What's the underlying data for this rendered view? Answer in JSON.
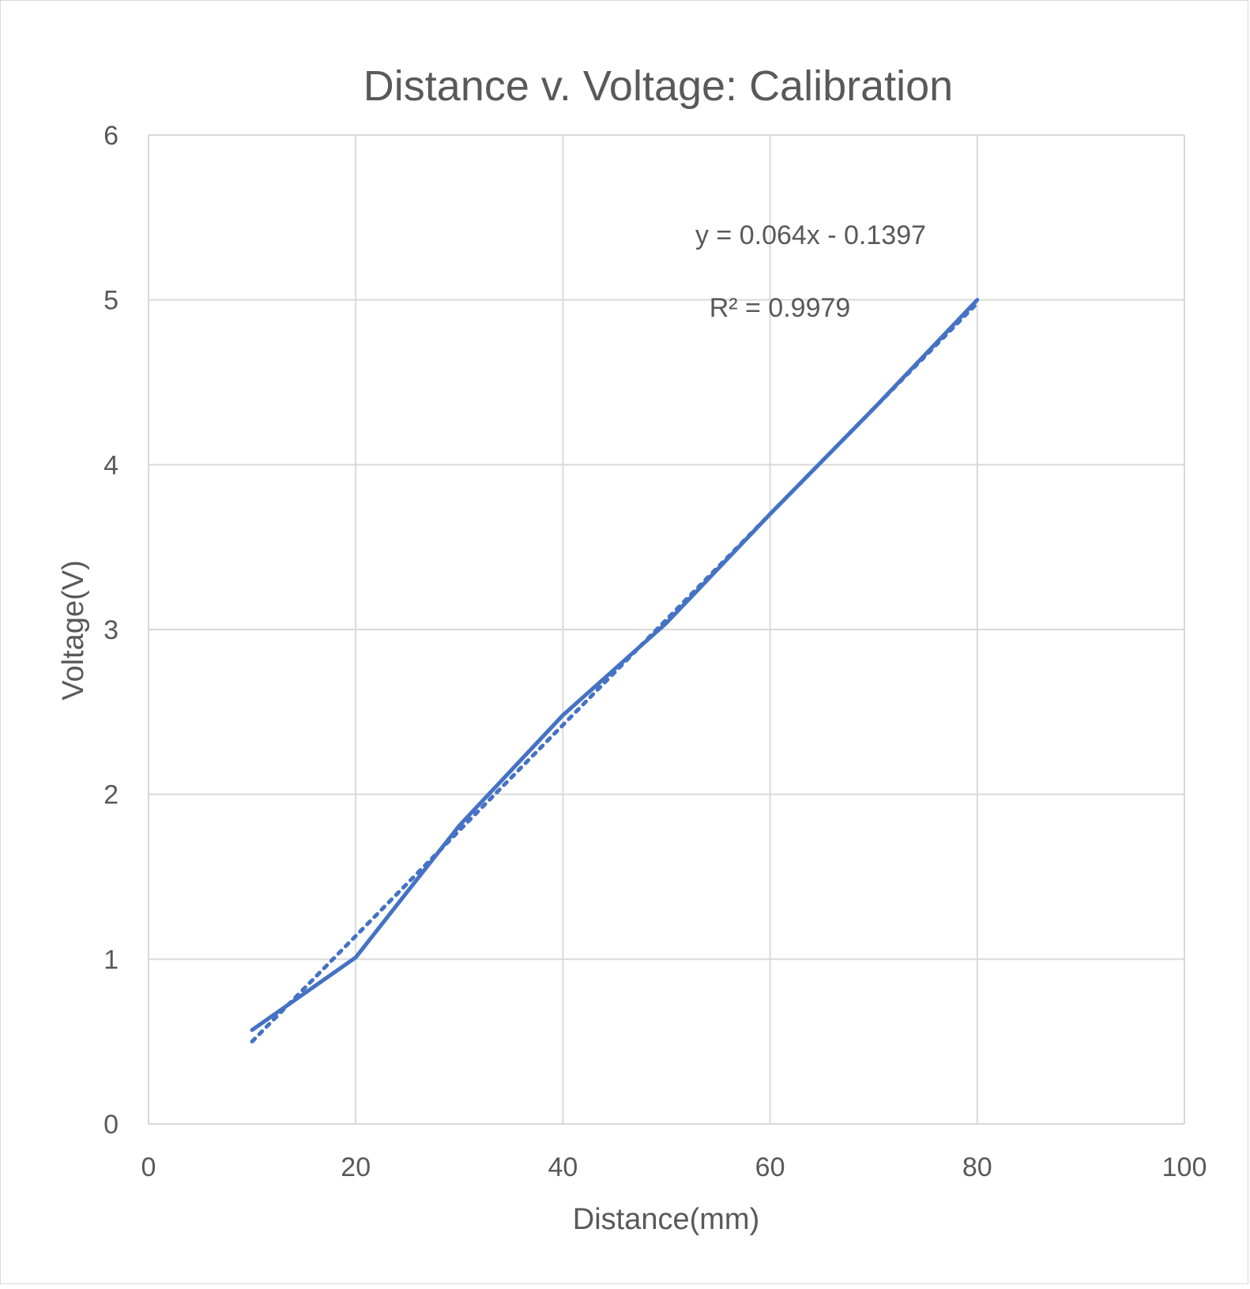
{
  "chart_data": {
    "type": "line",
    "title": "Distance v. Voltage: Calibration",
    "xlabel": "Distance(mm)",
    "ylabel": "Voltage(V)",
    "xlim": [
      0,
      100
    ],
    "ylim": [
      0,
      6
    ],
    "xticks": [
      0,
      20,
      40,
      60,
      80,
      100
    ],
    "yticks": [
      0,
      1,
      2,
      3,
      4,
      5,
      6
    ],
    "grid": true,
    "series": [
      {
        "x": [
          10,
          20,
          30,
          40,
          50,
          60,
          70,
          80
        ],
        "values": [
          0.57,
          1.01,
          1.81,
          2.48,
          3.04,
          3.7,
          4.34,
          5.0
        ],
        "color": "#4472c4",
        "style": "solid"
      }
    ],
    "trendline": {
      "type": "linear",
      "slope": 0.064,
      "intercept": -0.1397,
      "x_range": [
        10,
        80
      ],
      "color": "#4472c4",
      "style": "dotted",
      "equation": "y = 0.064x - 0.1397",
      "r_squared": "R² = 0.9979"
    }
  }
}
